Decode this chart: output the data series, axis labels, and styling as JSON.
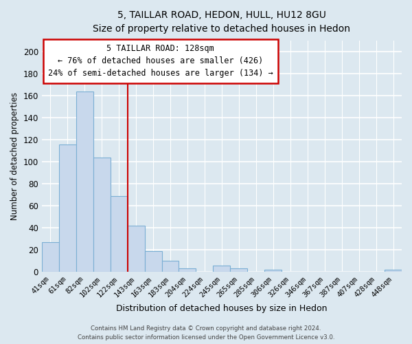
{
  "title_line1": "5, TAILLAR ROAD, HEDON, HULL, HU12 8GU",
  "title_line2": "Size of property relative to detached houses in Hedon",
  "xlabel": "Distribution of detached houses by size in Hedon",
  "ylabel": "Number of detached properties",
  "bar_labels": [
    "41sqm",
    "61sqm",
    "82sqm",
    "102sqm",
    "122sqm",
    "143sqm",
    "163sqm",
    "183sqm",
    "204sqm",
    "224sqm",
    "245sqm",
    "265sqm",
    "285sqm",
    "306sqm",
    "326sqm",
    "346sqm",
    "367sqm",
    "387sqm",
    "407sqm",
    "428sqm",
    "448sqm"
  ],
  "bar_values": [
    27,
    116,
    164,
    104,
    69,
    42,
    19,
    10,
    3,
    0,
    6,
    3,
    0,
    2,
    0,
    0,
    0,
    0,
    0,
    0,
    2
  ],
  "bar_color": "#c8d8ec",
  "bar_edge_color": "#7bafd4",
  "vline_color": "#cc0000",
  "ylim": [
    0,
    210
  ],
  "yticks": [
    0,
    20,
    40,
    60,
    80,
    100,
    120,
    140,
    160,
    180,
    200
  ],
  "annotation_title": "5 TAILLAR ROAD: 128sqm",
  "annotation_line1": "← 76% of detached houses are smaller (426)",
  "annotation_line2": "24% of semi-detached houses are larger (134) →",
  "annotation_box_color": "#ffffff",
  "annotation_box_edge": "#cc0000",
  "footer_line1": "Contains HM Land Registry data © Crown copyright and database right 2024.",
  "footer_line2": "Contains public sector information licensed under the Open Government Licence v3.0.",
  "background_color": "#dce8f0",
  "plot_bg_color": "#dce8f0",
  "grid_color": "#ffffff"
}
